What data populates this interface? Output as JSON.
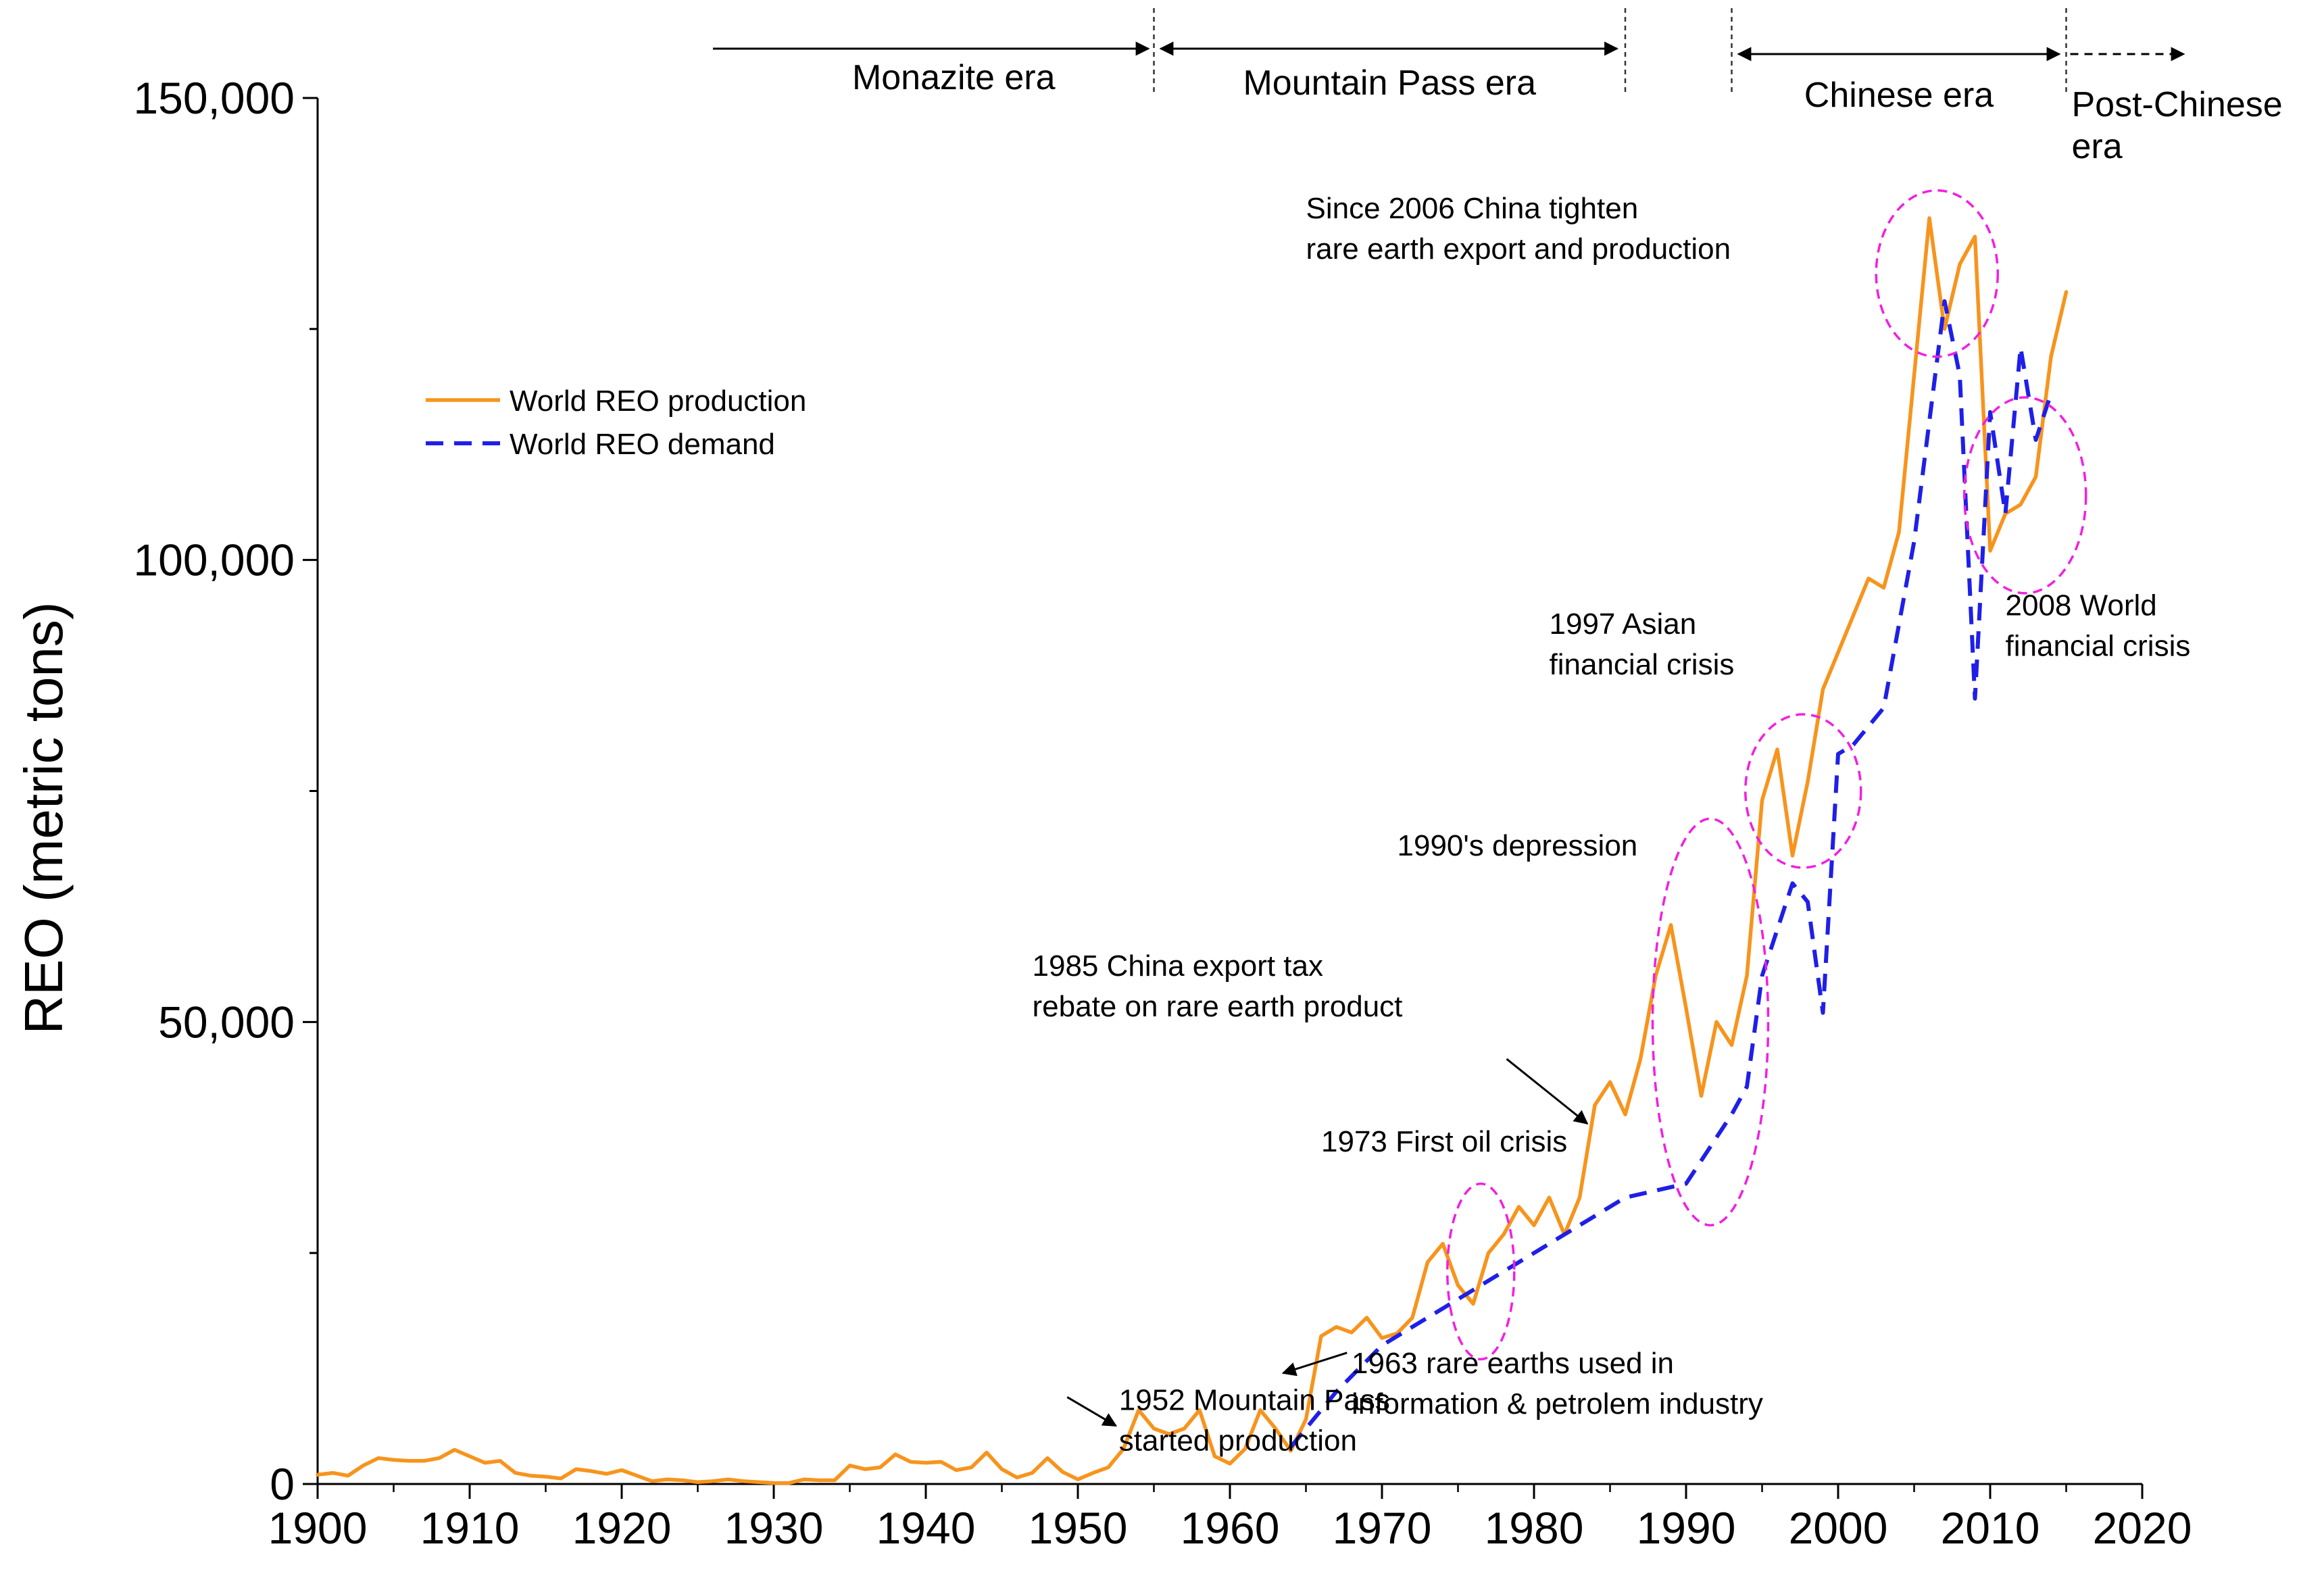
{
  "chart_data": {
    "type": "line",
    "title": "",
    "xlabel": "",
    "ylabel": "REO (metric tons)",
    "xlim": [
      1900,
      2020
    ],
    "ylim": [
      0,
      150000
    ],
    "x_ticks": [
      1900,
      1910,
      1920,
      1930,
      1940,
      1950,
      1960,
      1970,
      1980,
      1990,
      2000,
      2010,
      2020
    ],
    "y_ticks": [
      0,
      25000,
      50000,
      75000,
      100000,
      125000,
      150000
    ],
    "x_tick_labels": [
      "1900",
      "1910",
      "1920",
      "1930",
      "1940",
      "1950",
      "1960",
      "1970",
      "1980",
      "1990",
      "2000",
      "2010",
      "2020"
    ],
    "y_tick_labels": [
      "0",
      "",
      "50,000",
      "",
      "100,000",
      "",
      "150,000"
    ],
    "legend": {
      "position": "upper-left",
      "entries": [
        "World REO production",
        "World REO demand"
      ]
    },
    "series": [
      {
        "name": "World REO production",
        "color": "#F7941D",
        "style": "solid",
        "x": [
          1900,
          1901,
          1902,
          1903,
          1904,
          1905,
          1906,
          1907,
          1908,
          1909,
          1910,
          1911,
          1912,
          1913,
          1914,
          1915,
          1916,
          1917,
          1918,
          1919,
          1920,
          1921,
          1922,
          1923,
          1924,
          1925,
          1926,
          1927,
          1928,
          1929,
          1930,
          1931,
          1932,
          1933,
          1934,
          1935,
          1936,
          1937,
          1938,
          1939,
          1940,
          1941,
          1942,
          1943,
          1944,
          1945,
          1946,
          1947,
          1948,
          1949,
          1950,
          1951,
          1952,
          1953,
          1954,
          1955,
          1956,
          1957,
          1958,
          1959,
          1960,
          1961,
          1962,
          1963,
          1964,
          1965,
          1966,
          1967,
          1968,
          1969,
          1970,
          1971,
          1972,
          1973,
          1974,
          1975,
          1976,
          1977,
          1978,
          1979,
          1980,
          1981,
          1982,
          1983,
          1984,
          1985,
          1986,
          1987,
          1988,
          1989,
          1990,
          1991,
          1992,
          1993,
          1994,
          1995,
          1996,
          1997,
          1998,
          1999,
          2000,
          2001,
          2002,
          2003,
          2004,
          2005,
          2006,
          2007,
          2008,
          2009,
          2010,
          2011,
          2012,
          2013,
          2014,
          2015
        ],
        "values": [
          1000,
          1200,
          900,
          2000,
          2800,
          2600,
          2500,
          2500,
          2800,
          3700,
          3000,
          2300,
          2500,
          1200,
          900,
          800,
          600,
          1600,
          1400,
          1100,
          1500,
          900,
          300,
          500,
          400,
          200,
          300,
          500,
          300,
          200,
          100,
          100,
          500,
          400,
          400,
          2000,
          1600,
          1800,
          3200,
          2400,
          2300,
          2400,
          1500,
          1800,
          3400,
          1600,
          700,
          1200,
          2800,
          1300,
          500,
          1200,
          1800,
          3800,
          8000,
          6000,
          5400,
          6000,
          8000,
          3000,
          2200,
          3800,
          8000,
          6000,
          3600,
          7000,
          16000,
          17000,
          16400,
          18000,
          15800,
          16300,
          18000,
          24000,
          26000,
          21500,
          19500,
          25000,
          27000,
          30000,
          28000,
          31000,
          27000,
          31000,
          41000,
          43500,
          40000,
          46000,
          55000,
          60500,
          51500,
          42000,
          50000,
          47500,
          55000,
          74000,
          79500,
          68000,
          76000,
          86000,
          90000,
          94000,
          98000,
          97000,
          103000,
          120000,
          137000,
          125000,
          132000,
          135000,
          101000,
          105000,
          106000,
          109000,
          122000,
          129000
        ]
      },
      {
        "name": "World REO demand",
        "color": "#1F1FE8",
        "style": "dashed",
        "x": [
          1964,
          1967,
          1970,
          1973,
          1976,
          1980,
          1983,
          1986,
          1990,
          1993,
          1994,
          1995,
          1996,
          1997,
          1998,
          1999,
          2000,
          2001,
          2003,
          2005,
          2007,
          2008,
          2009,
          2010,
          2011,
          2012,
          2013,
          2014
        ],
        "values": [
          4000,
          10000,
          15000,
          18000,
          21000,
          25000,
          28000,
          31000,
          32500,
          40000,
          43000,
          55000,
          60000,
          65000,
          63000,
          51000,
          79000,
          80000,
          84000,
          102000,
          128000,
          120000,
          85000,
          116000,
          105000,
          123000,
          113000,
          118000
        ]
      }
    ],
    "eras": [
      {
        "label": "Monazite era",
        "from": 1926,
        "to": 1955
      },
      {
        "label": "Mountain Pass era",
        "from": 1955,
        "to": 1986
      },
      {
        "label": "Chinese era",
        "from": 1993,
        "to": 2015
      },
      {
        "label": "Post-Chinese era",
        "from": 2015,
        "to": 2023,
        "line1": "Post-Chinese",
        "line2": "era"
      }
    ],
    "annotations": [
      {
        "id": "mountain-pass",
        "lines": [
          "1952 Mountain Pass",
          "started production"
        ],
        "x": 1952.7,
        "y": 8000,
        "arrow_to": [
          1952.5,
          6300
        ]
      },
      {
        "id": "rare-earths-1963",
        "lines": [
          "1963 rare earths used in",
          "information & petrolem industry"
        ],
        "x": 1968,
        "y": 12000,
        "arrow_to": [
          1963.5,
          12000
        ]
      },
      {
        "id": "oil-crisis",
        "lines": [
          "1973 First oil crisis"
        ],
        "x": 1966,
        "y": 36000
      },
      {
        "id": "export-tax",
        "lines": [
          "1985 China export tax",
          "rebate on rare earth product"
        ],
        "x": 1947,
        "y": 55000,
        "arrow_to": [
          1983.5,
          39000
        ]
      },
      {
        "id": "depression",
        "lines": [
          "1990's depression"
        ],
        "x": 1971,
        "y": 68000
      },
      {
        "id": "asian-crisis",
        "lines": [
          "1997 Asian",
          "financial crisis"
        ],
        "x": 1981,
        "y": 92000
      },
      {
        "id": "china-tighten",
        "lines": [
          "Since 2006 China tighten",
          "rare earth export and production"
        ],
        "x": 1965,
        "y": 137000
      },
      {
        "id": "world-crisis",
        "lines": [
          "2008 World",
          "financial crisis"
        ],
        "x": 2011,
        "y": 94000
      }
    ],
    "highlight_ellipses": [
      {
        "cx": 1976.5,
        "cy": 23000,
        "rx": 2.2,
        "ry": 9500
      },
      {
        "cx": 1991.6,
        "cy": 50000,
        "rx": 3.8,
        "ry": 22000
      },
      {
        "cx": 1997.7,
        "cy": 75000,
        "rx": 3.8,
        "ry": 8300
      },
      {
        "cx": 2006.5,
        "cy": 131000,
        "rx": 4.0,
        "ry": 9000
      },
      {
        "cx": 2012.3,
        "cy": 107000,
        "rx": 4.0,
        "ry": 10600
      }
    ]
  },
  "colors": {
    "production": "#F7941D",
    "demand": "#1F1FE8",
    "highlight": "#F020E0",
    "axis": "#000000"
  }
}
